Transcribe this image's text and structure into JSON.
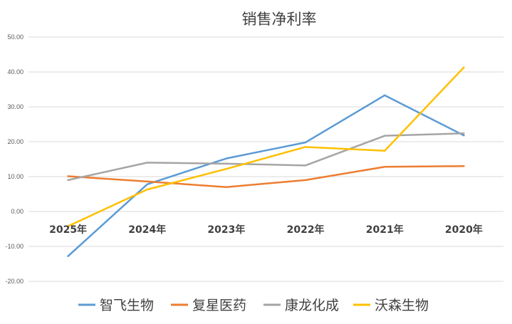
{
  "chart_data": {
    "type": "line",
    "title": "销售净利率",
    "categories": [
      "2025年",
      "2024年",
      "2023年",
      "2022年",
      "2021年",
      "2020年"
    ],
    "ylim": [
      -20,
      50
    ],
    "yticks": [
      "-20.00",
      "-10.00",
      "0.00",
      "10.00",
      "20.00",
      "30.00",
      "40.00",
      "50.00"
    ],
    "grid": true,
    "legend_position": "bottom",
    "series": [
      {
        "name": "智飞生物",
        "color": "#5b9bd5",
        "values": [
          -12.8,
          7.8,
          15.2,
          19.8,
          33.3,
          21.8
        ]
      },
      {
        "name": "复星医药",
        "color": "#ed7d31",
        "values": [
          10.1,
          8.6,
          7.0,
          9.0,
          12.8,
          13.0
        ]
      },
      {
        "name": "康龙化成",
        "color": "#a5a5a5",
        "values": [
          9.0,
          14.0,
          13.7,
          13.2,
          21.7,
          22.4
        ]
      },
      {
        "name": "沃森生物",
        "color": "#ffc000",
        "values": [
          -4.2,
          6.3,
          12.2,
          18.5,
          17.4,
          41.3
        ]
      }
    ]
  }
}
